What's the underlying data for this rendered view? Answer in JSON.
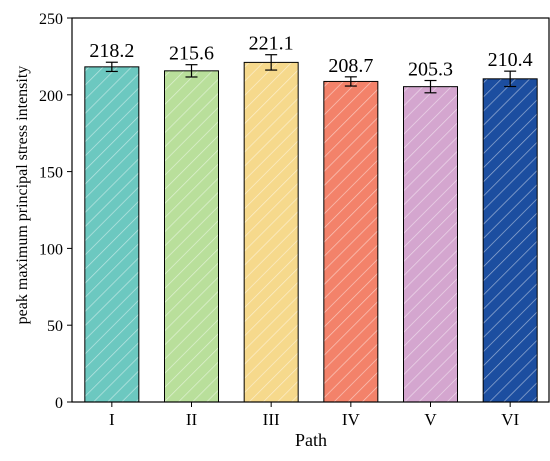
{
  "chart_data": {
    "type": "bar",
    "title": "",
    "xlabel": "Path",
    "ylabel": "peak maximum principal stress intensity",
    "categories": [
      "I",
      "II",
      "III",
      "IV",
      "V",
      "VI"
    ],
    "values": [
      218.2,
      215.6,
      221.1,
      208.7,
      205.3,
      210.4
    ],
    "errors": [
      3.0,
      4.0,
      5.0,
      3.0,
      4.0,
      5.0
    ],
    "value_labels": [
      "218.2",
      "215.6",
      "221.1",
      "208.7",
      "205.3",
      "210.4"
    ],
    "ylim": [
      0,
      250
    ],
    "yticks": [
      0,
      50,
      100,
      150,
      200,
      250
    ],
    "grid": false,
    "legend": "none",
    "bar_colors": [
      "#6cc8c0",
      "#b9df9b",
      "#f6d98c",
      "#f3826a",
      "#d4a6cf",
      "#1c4ea0"
    ],
    "hatch": "diagonal"
  }
}
